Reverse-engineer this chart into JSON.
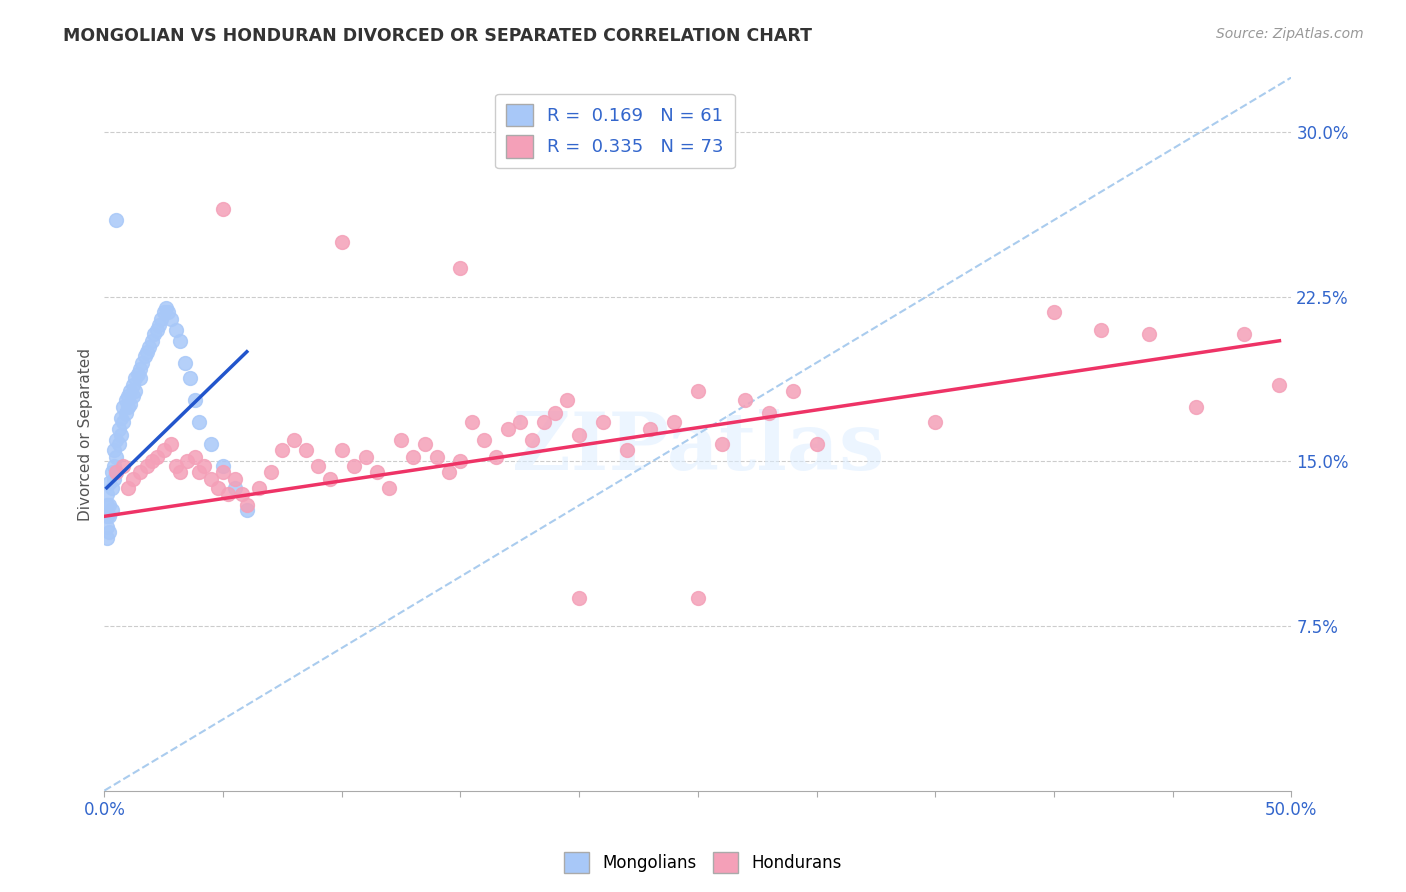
{
  "title": "MONGOLIAN VS HONDURAN DIVORCED OR SEPARATED CORRELATION CHART",
  "source_text": "Source: ZipAtlas.com",
  "ylabel": "Divorced or Separated",
  "xlim": [
    0.0,
    0.5
  ],
  "ylim": [
    0.0,
    0.325
  ],
  "mongolian_color": "#a8c8f8",
  "honduran_color": "#f4a0b8",
  "mongolian_line_color": "#2255cc",
  "honduran_line_color": "#ee3366",
  "ref_line_color": "#aaccee",
  "legend_text_1": "R =  0.169   N = 61",
  "legend_text_2": "R =  0.335   N = 73",
  "watermark": "ZIPatlas",
  "ytick_positions": [
    0.075,
    0.15,
    0.225,
    0.3
  ],
  "ytick_labels": [
    "7.5%",
    "15.0%",
    "22.5%",
    "30.0%"
  ],
  "mg_x": [
    0.001,
    0.001,
    0.001,
    0.001,
    0.001,
    0.002,
    0.002,
    0.002,
    0.002,
    0.003,
    0.003,
    0.003,
    0.004,
    0.004,
    0.004,
    0.005,
    0.005,
    0.005,
    0.006,
    0.006,
    0.007,
    0.007,
    0.008,
    0.008,
    0.009,
    0.009,
    0.01,
    0.01,
    0.011,
    0.011,
    0.012,
    0.012,
    0.013,
    0.013,
    0.014,
    0.015,
    0.015,
    0.016,
    0.017,
    0.018,
    0.019,
    0.02,
    0.021,
    0.022,
    0.023,
    0.024,
    0.025,
    0.026,
    0.027,
    0.028,
    0.03,
    0.032,
    0.034,
    0.036,
    0.038,
    0.04,
    0.045,
    0.05,
    0.055,
    0.06,
    0.005
  ],
  "mg_y": [
    0.13,
    0.135,
    0.12,
    0.115,
    0.125,
    0.14,
    0.125,
    0.13,
    0.118,
    0.145,
    0.138,
    0.128,
    0.155,
    0.148,
    0.142,
    0.16,
    0.152,
    0.145,
    0.165,
    0.158,
    0.17,
    0.162,
    0.175,
    0.168,
    0.178,
    0.172,
    0.18,
    0.175,
    0.182,
    0.176,
    0.185,
    0.18,
    0.188,
    0.182,
    0.19,
    0.192,
    0.188,
    0.195,
    0.198,
    0.2,
    0.202,
    0.205,
    0.208,
    0.21,
    0.212,
    0.215,
    0.218,
    0.22,
    0.218,
    0.215,
    0.21,
    0.205,
    0.195,
    0.188,
    0.178,
    0.168,
    0.158,
    0.148,
    0.138,
    0.128,
    0.26
  ],
  "hn_x": [
    0.005,
    0.008,
    0.01,
    0.012,
    0.015,
    0.018,
    0.02,
    0.022,
    0.025,
    0.028,
    0.03,
    0.032,
    0.035,
    0.038,
    0.04,
    0.042,
    0.045,
    0.048,
    0.05,
    0.052,
    0.055,
    0.058,
    0.06,
    0.065,
    0.07,
    0.075,
    0.08,
    0.085,
    0.09,
    0.095,
    0.1,
    0.105,
    0.11,
    0.115,
    0.12,
    0.125,
    0.13,
    0.135,
    0.14,
    0.145,
    0.15,
    0.155,
    0.16,
    0.165,
    0.17,
    0.175,
    0.18,
    0.185,
    0.19,
    0.195,
    0.2,
    0.21,
    0.22,
    0.23,
    0.24,
    0.25,
    0.26,
    0.27,
    0.28,
    0.29,
    0.3,
    0.35,
    0.4,
    0.42,
    0.44,
    0.46,
    0.48,
    0.495,
    0.05,
    0.1,
    0.15,
    0.2,
    0.25
  ],
  "hn_y": [
    0.145,
    0.148,
    0.138,
    0.142,
    0.145,
    0.148,
    0.15,
    0.152,
    0.155,
    0.158,
    0.148,
    0.145,
    0.15,
    0.152,
    0.145,
    0.148,
    0.142,
    0.138,
    0.145,
    0.135,
    0.142,
    0.135,
    0.13,
    0.138,
    0.145,
    0.155,
    0.16,
    0.155,
    0.148,
    0.142,
    0.155,
    0.148,
    0.152,
    0.145,
    0.138,
    0.16,
    0.152,
    0.158,
    0.152,
    0.145,
    0.15,
    0.168,
    0.16,
    0.152,
    0.165,
    0.168,
    0.16,
    0.168,
    0.172,
    0.178,
    0.162,
    0.168,
    0.155,
    0.165,
    0.168,
    0.182,
    0.158,
    0.178,
    0.172,
    0.182,
    0.158,
    0.168,
    0.218,
    0.21,
    0.208,
    0.175,
    0.208,
    0.185,
    0.265,
    0.25,
    0.238,
    0.088,
    0.088
  ],
  "mg_trend_x": [
    0.001,
    0.06
  ],
  "mg_trend_y": [
    0.138,
    0.2
  ],
  "hn_trend_x": [
    0.0,
    0.495
  ],
  "hn_trend_y": [
    0.125,
    0.205
  ],
  "ref_line_x": [
    0.0,
    0.5
  ],
  "ref_line_y": [
    0.0,
    0.325
  ]
}
